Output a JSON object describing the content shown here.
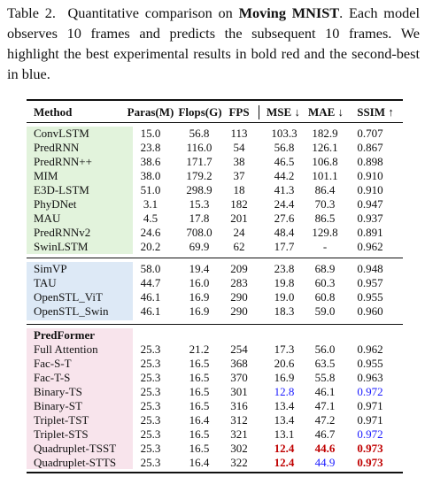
{
  "caption": {
    "label": "Table 2.",
    "before": "Quantitative comparison on",
    "bold": "Moving MNIST",
    "after": ". Each model observes 10 frames and predicts the subsequent 10 frames. We highlight the best experimental results in bold red and the second-best in blue."
  },
  "styles": {
    "best": "#c00000",
    "second": "#1a1aff"
  },
  "table": {
    "header": [
      "Method",
      "Paras(M)",
      "Flops(G)",
      "FPS",
      "MSE ↓",
      "MAE ↓",
      "SSIM ↑"
    ],
    "groups": [
      {
        "color": "#e2f3dc",
        "rows": [
          {
            "method": "ConvLSTM",
            "values": [
              "15.0",
              "56.8",
              "113",
              "103.3",
              "182.9",
              "0.707"
            ]
          },
          {
            "method": "PredRNN",
            "values": [
              "23.8",
              "116.0",
              "54",
              "56.8",
              "126.1",
              "0.867"
            ]
          },
          {
            "method": "PredRNN++",
            "values": [
              "38.6",
              "171.7",
              "38",
              "46.5",
              "106.8",
              "0.898"
            ]
          },
          {
            "method": "MIM",
            "values": [
              "38.0",
              "179.2",
              "37",
              "44.2",
              "101.1",
              "0.910"
            ]
          },
          {
            "method": "E3D-LSTM",
            "values": [
              "51.0",
              "298.9",
              "18",
              "41.3",
              "86.4",
              "0.910"
            ]
          },
          {
            "method": "PhyDNet",
            "values": [
              "3.1",
              "15.3",
              "182",
              "24.4",
              "70.3",
              "0.947"
            ]
          },
          {
            "method": "MAU",
            "values": [
              "4.5",
              "17.8",
              "201",
              "27.6",
              "86.5",
              "0.937"
            ]
          },
          {
            "method": "PredRNNv2",
            "values": [
              "24.6",
              "708.0",
              "24",
              "48.4",
              "129.8",
              "0.891"
            ]
          },
          {
            "method": "SwinLSTM",
            "values": [
              "20.2",
              "69.9",
              "62",
              "17.7",
              "-",
              "0.962"
            ]
          }
        ]
      },
      {
        "color": "#dde9f6",
        "rows": [
          {
            "method": "SimVP",
            "values": [
              "58.0",
              "19.4",
              "209",
              "23.8",
              "68.9",
              "0.948"
            ]
          },
          {
            "method": "TAU",
            "values": [
              "44.7",
              "16.0",
              "283",
              "19.8",
              "60.3",
              "0.957"
            ]
          },
          {
            "method": "OpenSTL_ViT",
            "values": [
              "46.1",
              "16.9",
              "290",
              "19.0",
              "60.8",
              "0.955"
            ]
          },
          {
            "method": "OpenSTL_Swin",
            "values": [
              "46.1",
              "16.9",
              "290",
              "18.3",
              "59.0",
              "0.960"
            ]
          }
        ]
      },
      {
        "color": "#f8e4ec",
        "title": "PredFormer",
        "rows": [
          {
            "method": "Full Attention",
            "values": [
              "25.3",
              "21.2",
              "254",
              "17.3",
              "56.0",
              "0.962"
            ]
          },
          {
            "method": "Fac-S-T",
            "values": [
              "25.3",
              "16.5",
              "368",
              "20.6",
              "63.5",
              "0.955"
            ]
          },
          {
            "method": "Fac-T-S",
            "values": [
              "25.3",
              "16.5",
              "370",
              "16.9",
              "55.8",
              "0.963"
            ]
          },
          {
            "method": "Binary-TS",
            "values": [
              "25.3",
              "16.5",
              "301",
              "12.8",
              "46.1",
              "0.972"
            ],
            "second": [
              3,
              5
            ]
          },
          {
            "method": "Binary-ST",
            "values": [
              "25.3",
              "16.5",
              "316",
              "13.4",
              "47.1",
              "0.971"
            ]
          },
          {
            "method": "Triplet-TST",
            "values": [
              "25.3",
              "16.4",
              "312",
              "13.4",
              "47.2",
              "0.971"
            ]
          },
          {
            "method": "Triplet-STS",
            "values": [
              "25.3",
              "16.5",
              "321",
              "13.1",
              "46.7",
              "0.972"
            ],
            "second": [
              5
            ]
          },
          {
            "method": "Quadruplet-TSST",
            "values": [
              "25.3",
              "16.5",
              "302",
              "12.4",
              "44.6",
              "0.973"
            ],
            "best": [
              3,
              4,
              5
            ]
          },
          {
            "method": "Quadruplet-STTS",
            "values": [
              "25.3",
              "16.4",
              "322",
              "12.4",
              "44.9",
              "0.973"
            ],
            "best": [
              3,
              5
            ],
            "second": [
              4
            ]
          }
        ]
      }
    ]
  }
}
